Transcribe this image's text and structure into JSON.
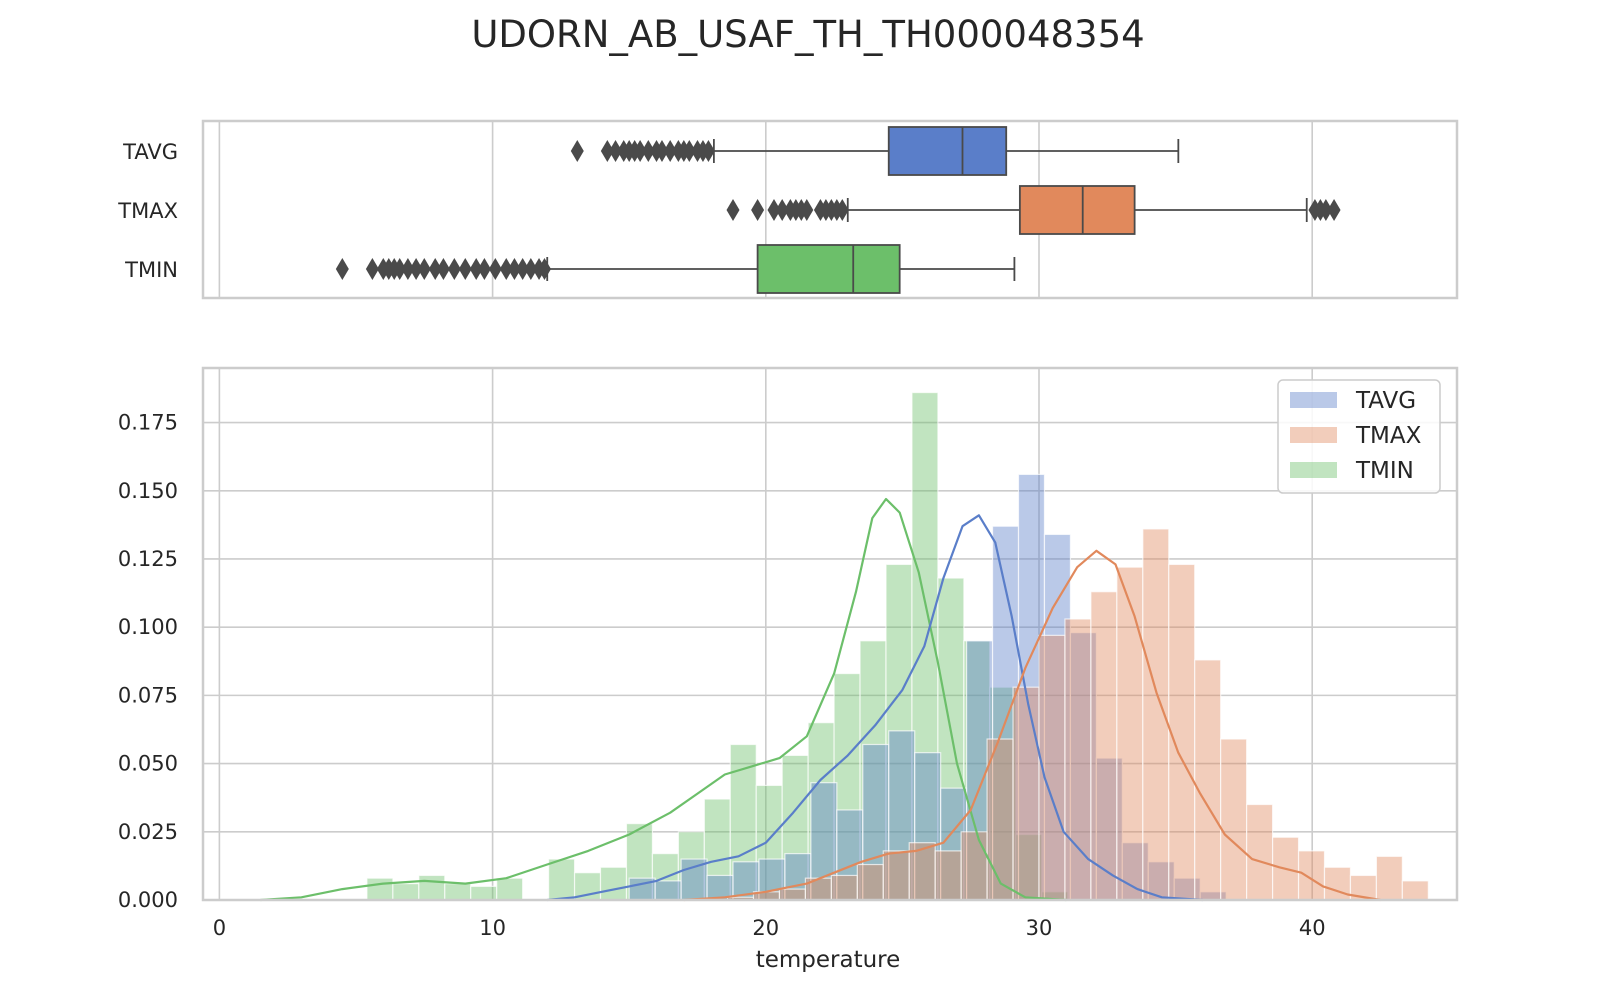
{
  "title": "UDORN_AB_USAF_TH_TH000048354",
  "chart_data": [
    {
      "type": "box",
      "xlim": [
        -0.6,
        45.3
      ],
      "grid": true,
      "xtick_values": [
        0,
        10,
        20,
        30,
        40
      ],
      "categories": [
        "TAVG",
        "TMAX",
        "TMIN"
      ],
      "colors": [
        "#5a7ec9",
        "#e1895c",
        "#6cbf6a"
      ],
      "boxes": [
        {
          "name": "TAVG",
          "whisker_low": 18.1,
          "q1": 24.5,
          "median": 27.2,
          "q3": 28.8,
          "whisker_high": 35.1,
          "outliers": [
            13.1,
            14.2,
            14.5,
            14.8,
            15.0,
            15.2,
            15.4,
            15.7,
            16.0,
            16.2,
            16.5,
            16.8,
            17.0,
            17.2,
            17.5,
            17.7,
            17.9
          ]
        },
        {
          "name": "TMAX",
          "whisker_low": 23.0,
          "q1": 29.3,
          "median": 31.6,
          "q3": 33.5,
          "whisker_high": 39.8,
          "outliers": [
            18.8,
            19.7,
            20.3,
            20.6,
            20.9,
            21.1,
            21.3,
            21.5,
            22.0,
            22.2,
            22.4,
            22.6,
            22.8,
            40.1,
            40.3,
            40.5,
            40.8
          ]
        },
        {
          "name": "TMIN",
          "whisker_low": 12.0,
          "q1": 19.7,
          "median": 23.2,
          "q3": 24.9,
          "whisker_high": 29.1,
          "outliers": [
            4.5,
            5.6,
            6.0,
            6.2,
            6.4,
            6.6,
            6.9,
            7.2,
            7.5,
            7.9,
            8.2,
            8.6,
            9.0,
            9.4,
            9.7,
            10.1,
            10.5,
            10.8,
            11.1,
            11.4,
            11.7,
            11.9
          ]
        }
      ]
    },
    {
      "type": "histogram",
      "xlabel": "temperature",
      "xlim": [
        -0.6,
        45.3
      ],
      "ylim": [
        0,
        0.195
      ],
      "grid": true,
      "legend": "top-right",
      "xtick_values": [
        0,
        10,
        20,
        30,
        40
      ],
      "ytick_labels": [
        "0.000",
        "0.025",
        "0.050",
        "0.075",
        "0.100",
        "0.125",
        "0.150",
        "0.175"
      ],
      "series": [
        {
          "name": "TMIN",
          "color": "#6cbf6a",
          "bin_width": 0.95,
          "bin_edges_start": 5.4,
          "heights": [
            0.008,
            0.006,
            0.009,
            0.006,
            0.005,
            0.008,
            0.0,
            0.015,
            0.01,
            0.012,
            0.028,
            0.017,
            0.025,
            0.037,
            0.057,
            0.042,
            0.053,
            0.065,
            0.083,
            0.095,
            0.123,
            0.186,
            0.118,
            0.095,
            0.078,
            0.024,
            0.003
          ],
          "kde": [
            [
              1.5,
              0.0
            ],
            [
              3.0,
              0.001
            ],
            [
              4.5,
              0.004
            ],
            [
              6.0,
              0.006
            ],
            [
              7.5,
              0.007
            ],
            [
              9.0,
              0.006
            ],
            [
              10.5,
              0.008
            ],
            [
              12.0,
              0.013
            ],
            [
              13.5,
              0.018
            ],
            [
              15.0,
              0.024
            ],
            [
              16.5,
              0.032
            ],
            [
              17.5,
              0.039
            ],
            [
              18.5,
              0.046
            ],
            [
              19.5,
              0.049
            ],
            [
              20.5,
              0.052
            ],
            [
              21.5,
              0.06
            ],
            [
              22.5,
              0.083
            ],
            [
              23.3,
              0.113
            ],
            [
              23.9,
              0.14
            ],
            [
              24.4,
              0.147
            ],
            [
              24.9,
              0.142
            ],
            [
              25.6,
              0.12
            ],
            [
              26.3,
              0.087
            ],
            [
              27.0,
              0.05
            ],
            [
              27.8,
              0.022
            ],
            [
              28.6,
              0.006
            ],
            [
              29.5,
              0.001
            ],
            [
              31.0,
              0.0
            ]
          ]
        },
        {
          "name": "TAVG",
          "color": "#5a7ec9",
          "bin_width": 0.95,
          "bin_edges_start": 15.0,
          "heights": [
            0.008,
            0.007,
            0.015,
            0.009,
            0.014,
            0.015,
            0.017,
            0.043,
            0.033,
            0.057,
            0.062,
            0.054,
            0.041,
            0.095,
            0.137,
            0.156,
            0.134,
            0.098,
            0.052,
            0.021,
            0.014,
            0.008,
            0.003
          ],
          "kde": [
            [
              12.0,
              0.0
            ],
            [
              13.0,
              0.001
            ],
            [
              14.0,
              0.003
            ],
            [
              15.0,
              0.005
            ],
            [
              16.0,
              0.007
            ],
            [
              17.0,
              0.011
            ],
            [
              18.0,
              0.014
            ],
            [
              19.0,
              0.016
            ],
            [
              20.0,
              0.021
            ],
            [
              21.0,
              0.032
            ],
            [
              22.0,
              0.044
            ],
            [
              23.0,
              0.053
            ],
            [
              24.0,
              0.064
            ],
            [
              25.0,
              0.077
            ],
            [
              25.8,
              0.093
            ],
            [
              26.5,
              0.118
            ],
            [
              27.2,
              0.137
            ],
            [
              27.8,
              0.141
            ],
            [
              28.4,
              0.131
            ],
            [
              29.0,
              0.104
            ],
            [
              29.6,
              0.072
            ],
            [
              30.2,
              0.045
            ],
            [
              30.9,
              0.025
            ],
            [
              31.8,
              0.015
            ],
            [
              32.7,
              0.009
            ],
            [
              33.6,
              0.004
            ],
            [
              34.5,
              0.001
            ],
            [
              36.0,
              0.0
            ]
          ]
        },
        {
          "name": "TMAX",
          "color": "#e1895c",
          "bin_width": 0.95,
          "bin_edges_start": 18.6,
          "heights": [
            0.001,
            0.003,
            0.004,
            0.008,
            0.009,
            0.013,
            0.018,
            0.021,
            0.018,
            0.025,
            0.059,
            0.078,
            0.097,
            0.103,
            0.113,
            0.122,
            0.136,
            0.123,
            0.088,
            0.059,
            0.035,
            0.023,
            0.018,
            0.012,
            0.009,
            0.016,
            0.007
          ],
          "kde": [
            [
              17.0,
              0.0
            ],
            [
              18.5,
              0.001
            ],
            [
              20.0,
              0.003
            ],
            [
              21.5,
              0.006
            ],
            [
              22.5,
              0.01
            ],
            [
              23.5,
              0.014
            ],
            [
              24.5,
              0.017
            ],
            [
              25.5,
              0.018
            ],
            [
              26.5,
              0.021
            ],
            [
              27.5,
              0.033
            ],
            [
              28.5,
              0.058
            ],
            [
              29.5,
              0.085
            ],
            [
              30.5,
              0.107
            ],
            [
              31.4,
              0.122
            ],
            [
              32.1,
              0.128
            ],
            [
              32.8,
              0.123
            ],
            [
              33.5,
              0.104
            ],
            [
              34.3,
              0.076
            ],
            [
              35.1,
              0.054
            ],
            [
              35.9,
              0.039
            ],
            [
              36.8,
              0.024
            ],
            [
              37.8,
              0.015
            ],
            [
              38.8,
              0.012
            ],
            [
              39.6,
              0.01
            ],
            [
              40.4,
              0.005
            ],
            [
              41.3,
              0.002
            ],
            [
              42.5,
              0.0
            ]
          ]
        }
      ]
    }
  ]
}
